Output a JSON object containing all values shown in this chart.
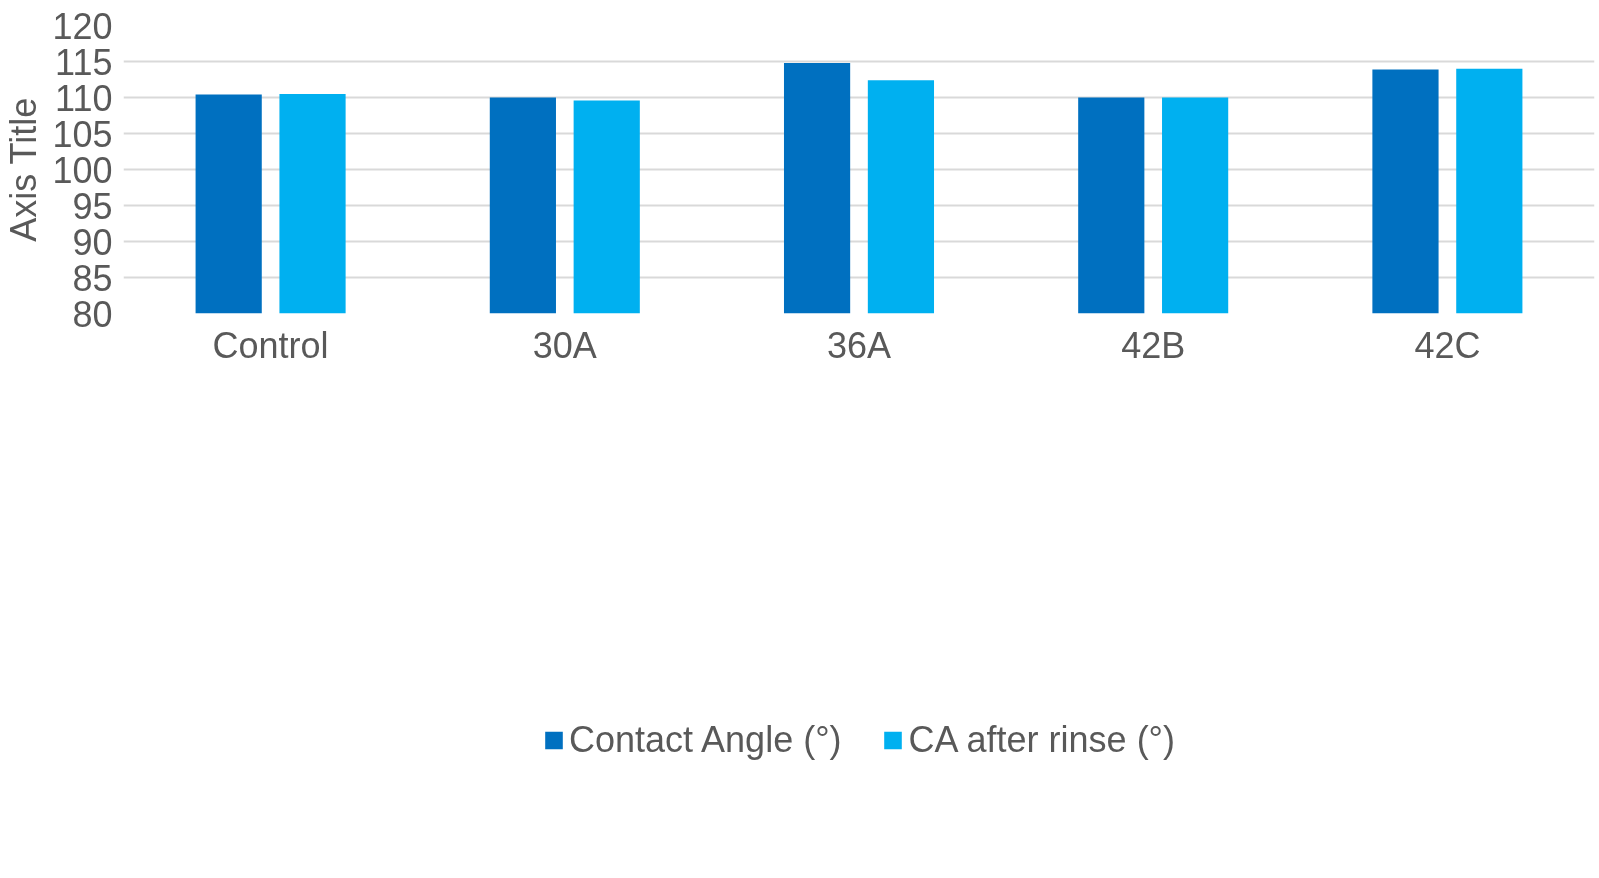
{
  "chart_data": {
    "type": "bar",
    "ylabel": "Axis Title",
    "categories": [
      "Control",
      "30A",
      "36A",
      "42B",
      "42C"
    ],
    "series": [
      {
        "name": "Contact Angle (°)",
        "color": "#0070c0",
        "values": [
          110.4,
          110.0,
          114.8,
          110.0,
          113.9
        ]
      },
      {
        "name": "CA after rinse (°)",
        "color": "#00b0f0",
        "values": [
          110.5,
          109.6,
          112.4,
          110.0,
          114.0
        ]
      }
    ],
    "ylim": [
      80,
      120
    ],
    "yticks": [
      80,
      85,
      90,
      95,
      100,
      105,
      110,
      115,
      120
    ],
    "grid": "y",
    "legend": "bottom"
  }
}
